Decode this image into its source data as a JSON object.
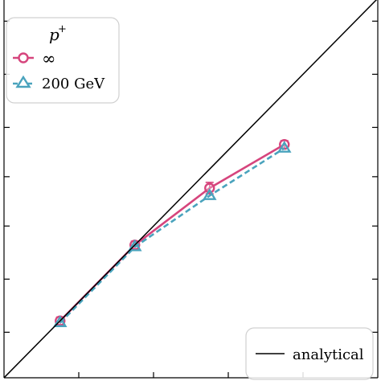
{
  "chart_data": {
    "type": "line",
    "axes": {
      "xlim": [
        0.0,
        10.0
      ],
      "ylim": [
        0.0,
        10.0
      ],
      "xscale": "linear",
      "yscale": "linear",
      "grid": false,
      "tick_direction": "in",
      "tick_labels_visible": false
    },
    "legends": [
      {
        "placement": "top-left",
        "title": "p",
        "title_superscript": "+",
        "entries": [
          "∞",
          "200 GeV"
        ]
      },
      {
        "placement": "bottom-right",
        "entries": [
          "analytical"
        ]
      }
    ],
    "series": [
      {
        "name": "∞",
        "color": "#d6457d",
        "marker": "circle",
        "linestyle": "solid",
        "x": [
          1.5,
          3.5,
          5.5,
          7.5
        ],
        "y": [
          1.5,
          3.5,
          5.0,
          6.15
        ],
        "yerr": [
          0.1,
          0.1,
          0.15,
          0.1
        ]
      },
      {
        "name": "200 GeV",
        "color": "#4aa3bd",
        "marker": "triangle",
        "linestyle": "dashed",
        "x": [
          1.5,
          3.5,
          5.5,
          7.5
        ],
        "y": [
          1.45,
          3.45,
          4.8,
          6.05
        ]
      },
      {
        "name": "analytical",
        "color": "#000000",
        "marker": "none",
        "linestyle": "solid",
        "x": [
          0.0,
          10.0
        ],
        "y": [
          0.0,
          10.0
        ]
      }
    ]
  }
}
